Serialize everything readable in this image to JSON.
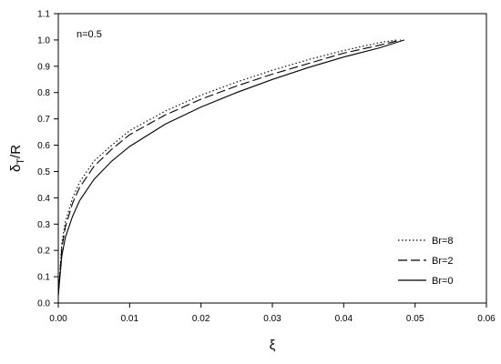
{
  "chart_data": {
    "type": "line",
    "title": "",
    "annotation": "n=0.5",
    "xlabel": "ξ",
    "ylabel_main": "δ",
    "ylabel_sub": "T",
    "ylabel_tail": "/R",
    "xlim": [
      0,
      0.06
    ],
    "ylim": [
      0,
      1.1
    ],
    "xticks": [
      0,
      0.01,
      0.02,
      0.03,
      0.04,
      0.05,
      0.06
    ],
    "xtick_labels": [
      "0.00",
      "0.01",
      "0.02",
      "0.03",
      "0.04",
      "0.05",
      "0.06"
    ],
    "yticks": [
      0,
      0.1,
      0.2,
      0.3,
      0.4,
      0.5,
      0.6,
      0.7,
      0.8,
      0.9,
      1.0,
      1.1
    ],
    "ytick_labels": [
      "0.0",
      "0.1",
      "0.2",
      "0.3",
      "0.4",
      "0.5",
      "0.6",
      "0.7",
      "0.8",
      "0.9",
      "1.0",
      "1.1"
    ],
    "grid": false,
    "legend_position": "bottom-right",
    "series": [
      {
        "name": "Br=8",
        "dash": "dotted",
        "x": [
          0,
          0.0005,
          0.001,
          0.002,
          0.003,
          0.005,
          0.0075,
          0.01,
          0.015,
          0.02,
          0.025,
          0.03,
          0.035,
          0.04,
          0.045,
          0.0475
        ],
        "y": [
          0.03,
          0.23,
          0.31,
          0.4,
          0.46,
          0.54,
          0.6,
          0.655,
          0.73,
          0.79,
          0.84,
          0.885,
          0.925,
          0.96,
          0.99,
          1.0
        ]
      },
      {
        "name": "Br=2",
        "dash": "dashed",
        "x": [
          0,
          0.0005,
          0.001,
          0.002,
          0.003,
          0.005,
          0.0075,
          0.01,
          0.015,
          0.02,
          0.025,
          0.03,
          0.035,
          0.04,
          0.045,
          0.048
        ],
        "y": [
          0.03,
          0.21,
          0.29,
          0.38,
          0.44,
          0.52,
          0.585,
          0.64,
          0.715,
          0.775,
          0.825,
          0.87,
          0.91,
          0.95,
          0.98,
          1.0
        ]
      },
      {
        "name": "Br=0",
        "dash": "solid",
        "x": [
          0,
          0.0005,
          0.001,
          0.002,
          0.003,
          0.005,
          0.0075,
          0.01,
          0.015,
          0.02,
          0.025,
          0.03,
          0.035,
          0.04,
          0.045,
          0.0485
        ],
        "y": [
          0.03,
          0.18,
          0.25,
          0.33,
          0.39,
          0.47,
          0.54,
          0.595,
          0.68,
          0.745,
          0.8,
          0.85,
          0.895,
          0.935,
          0.97,
          1.0
        ]
      }
    ],
    "colors": {
      "line": "#000000",
      "background": "#ffffff"
    }
  }
}
